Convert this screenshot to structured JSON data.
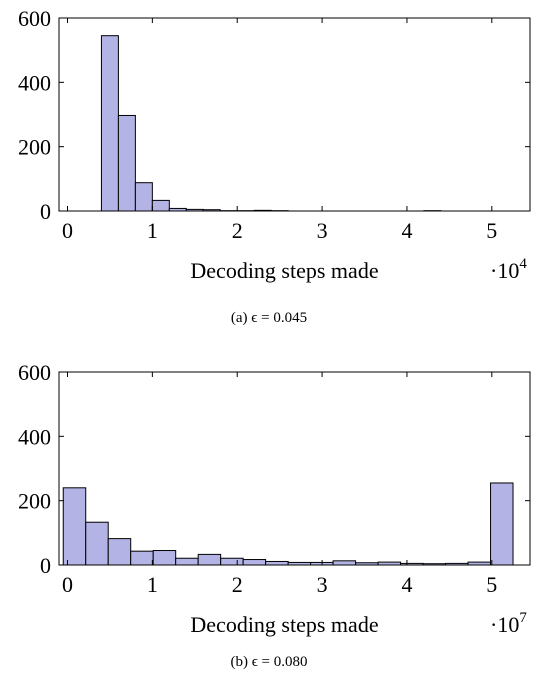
{
  "chart_data": [
    {
      "type": "bar",
      "caption": "(a) ϵ = 0.045",
      "xlabel": "Decoding steps made",
      "x_multiplier_base": "·10",
      "x_multiplier_exp": "4",
      "xlim": [
        -0.1,
        5.45
      ],
      "ylim": [
        0,
        600
      ],
      "xticks": [
        "0",
        "1",
        "2",
        "3",
        "4",
        "5"
      ],
      "yticks": [
        "0",
        "200",
        "400",
        "600"
      ],
      "bin_start": 0.4,
      "bin_width": 0.2,
      "values": [
        545,
        297,
        88,
        33,
        8,
        5,
        4,
        1,
        1,
        2,
        1,
        0,
        0,
        0,
        0,
        0,
        0,
        0,
        0,
        1,
        0,
        0,
        0
      ]
    },
    {
      "type": "bar",
      "caption": "(b) ϵ = 0.080",
      "xlabel": "Decoding steps made",
      "x_multiplier_base": "·10",
      "x_multiplier_exp": "7",
      "xlim": [
        -0.1,
        5.45
      ],
      "ylim": [
        0,
        600
      ],
      "xticks": [
        "0",
        "1",
        "2",
        "3",
        "4",
        "5"
      ],
      "yticks": [
        "0",
        "200",
        "400",
        "600"
      ],
      "bin_start": -0.05,
      "bin_width": 0.265,
      "values": [
        240,
        133,
        82,
        43,
        45,
        21,
        33,
        21,
        17,
        11,
        8,
        8,
        13,
        7,
        9,
        5,
        4,
        5,
        9,
        255
      ]
    }
  ]
}
